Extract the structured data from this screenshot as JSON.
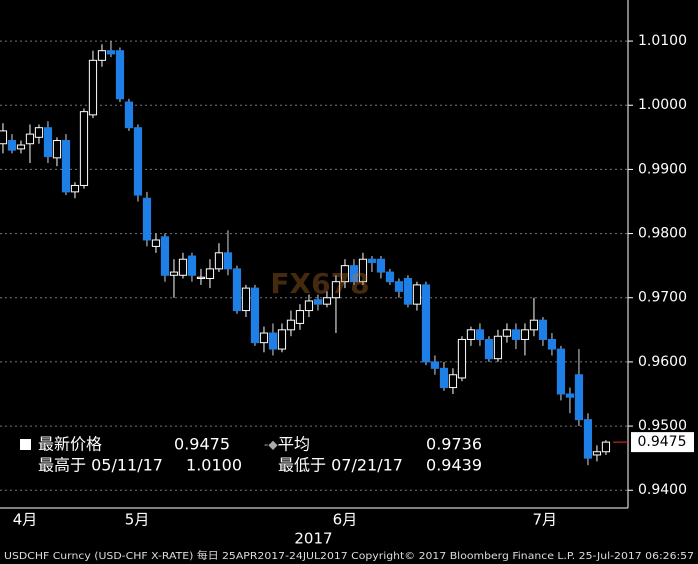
{
  "chart_data": {
    "type": "candlestick",
    "x": [
      0,
      1,
      2,
      3,
      4,
      5,
      6,
      7,
      8,
      9,
      10,
      11,
      12,
      13,
      14,
      15,
      16,
      17,
      18,
      19,
      20,
      21,
      22,
      23,
      24,
      25,
      26,
      27,
      28,
      29,
      30,
      31,
      32,
      33,
      34,
      35,
      36,
      37,
      38,
      39,
      40,
      41,
      42,
      43,
      44,
      45,
      46,
      47,
      48,
      49,
      50,
      51,
      52,
      53,
      54,
      55,
      56,
      57,
      58,
      59,
      60,
      61,
      62,
      63,
      64,
      65,
      66,
      67
    ],
    "open": [
      0.994,
      0.9945,
      0.9932,
      0.994,
      0.995,
      0.9965,
      0.9918,
      0.9945,
      0.9865,
      0.9875,
      0.9985,
      1.007,
      1.0085,
      1.0085,
      1.0005,
      0.9965,
      0.9855,
      0.978,
      0.9795,
      0.9735,
      0.9735,
      0.9765,
      0.973,
      0.973,
      0.9745,
      0.977,
      0.9745,
      0.968,
      0.9715,
      0.963,
      0.9645,
      0.962,
      0.965,
      0.966,
      0.968,
      0.9697,
      0.969,
      0.97,
      0.9725,
      0.975,
      0.9725,
      0.976,
      0.976,
      0.974,
      0.9725,
      0.973,
      0.969,
      0.972,
      0.96,
      0.959,
      0.956,
      0.9575,
      0.9635,
      0.965,
      0.9635,
      0.9605,
      0.964,
      0.965,
      0.9635,
      0.965,
      0.9665,
      0.9635,
      0.962,
      0.955,
      0.958,
      0.951,
      0.9455,
      0.946
    ],
    "high": [
      0.9972,
      0.9955,
      0.9945,
      0.997,
      0.997,
      0.9975,
      0.995,
      0.9955,
      0.988,
      0.9995,
      1.0085,
      1.0095,
      1.01,
      1.009,
      1.001,
      0.997,
      0.9865,
      0.98,
      0.98,
      0.976,
      0.977,
      0.977,
      0.9745,
      0.976,
      0.9785,
      0.9805,
      0.975,
      0.972,
      0.972,
      0.9655,
      0.966,
      0.966,
      0.968,
      0.969,
      0.9705,
      0.9705,
      0.971,
      0.9735,
      0.976,
      0.976,
      0.977,
      0.9765,
      0.9765,
      0.9745,
      0.973,
      0.9735,
      0.9725,
      0.9725,
      0.961,
      0.96,
      0.959,
      0.964,
      0.9655,
      0.966,
      0.964,
      0.965,
      0.966,
      0.966,
      0.966,
      0.97,
      0.967,
      0.9645,
      0.9625,
      0.956,
      0.962,
      0.952,
      0.947,
      0.9478
    ],
    "low": [
      0.9925,
      0.9925,
      0.9925,
      0.991,
      0.994,
      0.991,
      0.9905,
      0.986,
      0.9855,
      0.987,
      0.998,
      1.006,
      1.0075,
      1.0005,
      0.996,
      0.985,
      0.978,
      0.977,
      0.9725,
      0.97,
      0.973,
      0.9725,
      0.972,
      0.9715,
      0.974,
      0.9735,
      0.9675,
      0.967,
      0.9625,
      0.9615,
      0.961,
      0.9615,
      0.964,
      0.965,
      0.967,
      0.968,
      0.9685,
      0.9645,
      0.9715,
      0.972,
      0.972,
      0.974,
      0.973,
      0.972,
      0.97,
      0.9685,
      0.968,
      0.9595,
      0.958,
      0.9555,
      0.955,
      0.957,
      0.9625,
      0.9625,
      0.96,
      0.96,
      0.963,
      0.962,
      0.961,
      0.964,
      0.9625,
      0.961,
      0.954,
      0.952,
      0.95,
      0.9439,
      0.9445,
      0.9455
    ],
    "close": [
      0.996,
      0.993,
      0.9938,
      0.9955,
      0.9965,
      0.992,
      0.9945,
      0.9865,
      0.9875,
      0.999,
      1.007,
      1.0085,
      1.008,
      1.001,
      0.9965,
      0.986,
      0.979,
      0.979,
      0.9735,
      0.974,
      0.976,
      0.9735,
      0.9732,
      0.9745,
      0.977,
      0.9745,
      0.968,
      0.9715,
      0.963,
      0.9645,
      0.962,
      0.965,
      0.9665,
      0.968,
      0.9695,
      0.969,
      0.97,
      0.9725,
      0.975,
      0.9725,
      0.976,
      0.9755,
      0.974,
      0.9725,
      0.971,
      0.969,
      0.972,
      0.96,
      0.959,
      0.956,
      0.958,
      0.9635,
      0.965,
      0.9635,
      0.9605,
      0.964,
      0.965,
      0.9635,
      0.965,
      0.9665,
      0.9635,
      0.962,
      0.955,
      0.9545,
      0.951,
      0.945,
      0.946,
      0.9475
    ],
    "up_color": "#ffffff",
    "down_color": "#1e7fe6",
    "xlim": [
      -0.33,
      69.45
    ],
    "xticks": [
      {
        "value": 2.45,
        "label": "4月"
      },
      {
        "value": 14.9,
        "label": "5月"
      },
      {
        "value": 38.0,
        "label": "6月"
      },
      {
        "value": 60.2,
        "label": "7月"
      }
    ],
    "year_label": {
      "value": 34.5,
      "label": "2017"
    },
    "ylim": [
      0.9377,
      1.0164
    ],
    "yticks": [
      {
        "value": 0.94,
        "label": "0.9400"
      },
      {
        "value": 0.95,
        "label": "0.9500"
      },
      {
        "value": 0.96,
        "label": "0.9600"
      },
      {
        "value": 0.97,
        "label": "0.9700"
      },
      {
        "value": 0.98,
        "label": "0.9800"
      },
      {
        "value": 0.99,
        "label": "0.9900"
      },
      {
        "value": 1.0,
        "label": "1.0000"
      },
      {
        "value": 1.01,
        "label": "1.0100"
      }
    ],
    "grid": true,
    "last_price": {
      "value": 0.9475,
      "label": "0.9475"
    },
    "watermark": "FX678",
    "legend": {
      "latest_name": "最新价格",
      "latest": "0.9475",
      "avg_name": "平均",
      "avg": "0.9736",
      "high_name": "最高于 05/11/17",
      "high": "1.0100",
      "low_name": "最低于 07/21/17",
      "low": "0.9439"
    },
    "footer": "USDCHF Curncy (USD-CHF X-RATE)  每日 25APR2017-24JUL2017 Copyright© 2017 Bloomberg Finance L.P. 25-Jul-2017 06:26:57"
  }
}
